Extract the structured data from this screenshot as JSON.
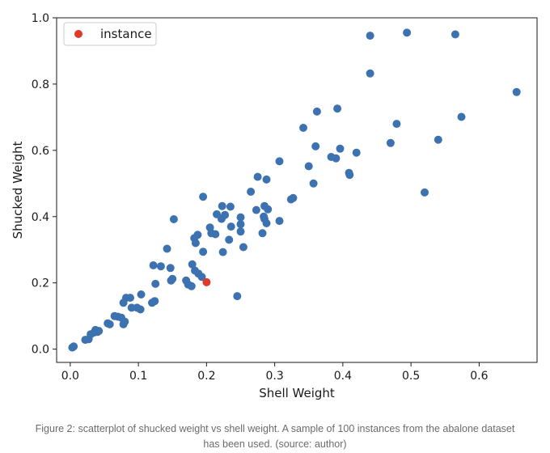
{
  "colors": {
    "points": "#3d72b0",
    "instance": "#e03a2a",
    "axis": "#1a1a1a",
    "caption": "#6b6b6b"
  },
  "caption": {
    "line1": "Figure 2: scatterplot of shucked weight vs shell weight. A sample of 100 instances from the abalone dataset",
    "line2": "has been used. (source: author)"
  },
  "chart_data": {
    "type": "scatter",
    "title": "",
    "xlabel": "Shell Weight",
    "ylabel": "Shucked Weight",
    "xlim": [
      -0.02,
      0.685
    ],
    "ylim": [
      -0.04,
      1.0
    ],
    "x_ticks": [
      0.0,
      0.1,
      0.2,
      0.3,
      0.4,
      0.5,
      0.6
    ],
    "x_tick_labels": [
      "0.0",
      "0.1",
      "0.2",
      "0.3",
      "0.4",
      "0.5",
      "0.6"
    ],
    "y_ticks": [
      0.0,
      0.2,
      0.4,
      0.6,
      0.8,
      1.0
    ],
    "y_tick_labels": [
      "0.0",
      "0.2",
      "0.4",
      "0.6",
      "0.8",
      "1.0"
    ],
    "grid": false,
    "legend": {
      "placement": "top-left",
      "entries": [
        {
          "label": "instance",
          "color": "#e03a2a"
        }
      ]
    },
    "series": [
      {
        "color": "#3d72b0",
        "points": [
          [
            0.003,
            0.005
          ],
          [
            0.005,
            0.008
          ],
          [
            0.022,
            0.028
          ],
          [
            0.027,
            0.03
          ],
          [
            0.03,
            0.045
          ],
          [
            0.035,
            0.05
          ],
          [
            0.04,
            0.052
          ],
          [
            0.042,
            0.055
          ],
          [
            0.037,
            0.058
          ],
          [
            0.055,
            0.078
          ],
          [
            0.058,
            0.075
          ],
          [
            0.065,
            0.1
          ],
          [
            0.07,
            0.098
          ],
          [
            0.075,
            0.095
          ],
          [
            0.078,
            0.075
          ],
          [
            0.08,
            0.083
          ],
          [
            0.078,
            0.14
          ],
          [
            0.082,
            0.155
          ],
          [
            0.088,
            0.155
          ],
          [
            0.09,
            0.125
          ],
          [
            0.098,
            0.125
          ],
          [
            0.103,
            0.12
          ],
          [
            0.104,
            0.165
          ],
          [
            0.12,
            0.14
          ],
          [
            0.124,
            0.145
          ],
          [
            0.125,
            0.197
          ],
          [
            0.122,
            0.253
          ],
          [
            0.133,
            0.25
          ],
          [
            0.142,
            0.303
          ],
          [
            0.147,
            0.245
          ],
          [
            0.148,
            0.207
          ],
          [
            0.15,
            0.212
          ],
          [
            0.152,
            0.392
          ],
          [
            0.17,
            0.207
          ],
          [
            0.173,
            0.195
          ],
          [
            0.178,
            0.19
          ],
          [
            0.179,
            0.256
          ],
          [
            0.182,
            0.335
          ],
          [
            0.183,
            0.237
          ],
          [
            0.184,
            0.32
          ],
          [
            0.187,
            0.345
          ],
          [
            0.188,
            0.228
          ],
          [
            0.193,
            0.218
          ],
          [
            0.195,
            0.294
          ],
          [
            0.195,
            0.46
          ],
          [
            0.205,
            0.367
          ],
          [
            0.207,
            0.35
          ],
          [
            0.213,
            0.347
          ],
          [
            0.215,
            0.407
          ],
          [
            0.222,
            0.393
          ],
          [
            0.223,
            0.432
          ],
          [
            0.224,
            0.293
          ],
          [
            0.227,
            0.405
          ],
          [
            0.233,
            0.33
          ],
          [
            0.235,
            0.43
          ],
          [
            0.236,
            0.37
          ],
          [
            0.245,
            0.16
          ],
          [
            0.25,
            0.398
          ],
          [
            0.25,
            0.377
          ],
          [
            0.25,
            0.355
          ],
          [
            0.254,
            0.308
          ],
          [
            0.265,
            0.475
          ],
          [
            0.273,
            0.42
          ],
          [
            0.275,
            0.52
          ],
          [
            0.282,
            0.35
          ],
          [
            0.284,
            0.4
          ],
          [
            0.285,
            0.393
          ],
          [
            0.285,
            0.432
          ],
          [
            0.288,
            0.512
          ],
          [
            0.288,
            0.38
          ],
          [
            0.29,
            0.422
          ],
          [
            0.307,
            0.387
          ],
          [
            0.307,
            0.567
          ],
          [
            0.324,
            0.452
          ],
          [
            0.327,
            0.456
          ],
          [
            0.342,
            0.668
          ],
          [
            0.35,
            0.552
          ],
          [
            0.357,
            0.5
          ],
          [
            0.36,
            0.612
          ],
          [
            0.362,
            0.717
          ],
          [
            0.383,
            0.58
          ],
          [
            0.39,
            0.576
          ],
          [
            0.392,
            0.726
          ],
          [
            0.396,
            0.605
          ],
          [
            0.409,
            0.532
          ],
          [
            0.41,
            0.526
          ],
          [
            0.42,
            0.593
          ],
          [
            0.44,
            0.946
          ],
          [
            0.44,
            0.832
          ],
          [
            0.47,
            0.622
          ],
          [
            0.479,
            0.68
          ],
          [
            0.494,
            0.955
          ],
          [
            0.52,
            0.473
          ],
          [
            0.54,
            0.632
          ],
          [
            0.565,
            0.95
          ],
          [
            0.574,
            0.701
          ],
          [
            0.655,
            0.776
          ]
        ]
      }
    ],
    "instance": {
      "label": "instance",
      "color": "#e03a2a",
      "point": [
        0.2,
        0.202
      ]
    }
  }
}
